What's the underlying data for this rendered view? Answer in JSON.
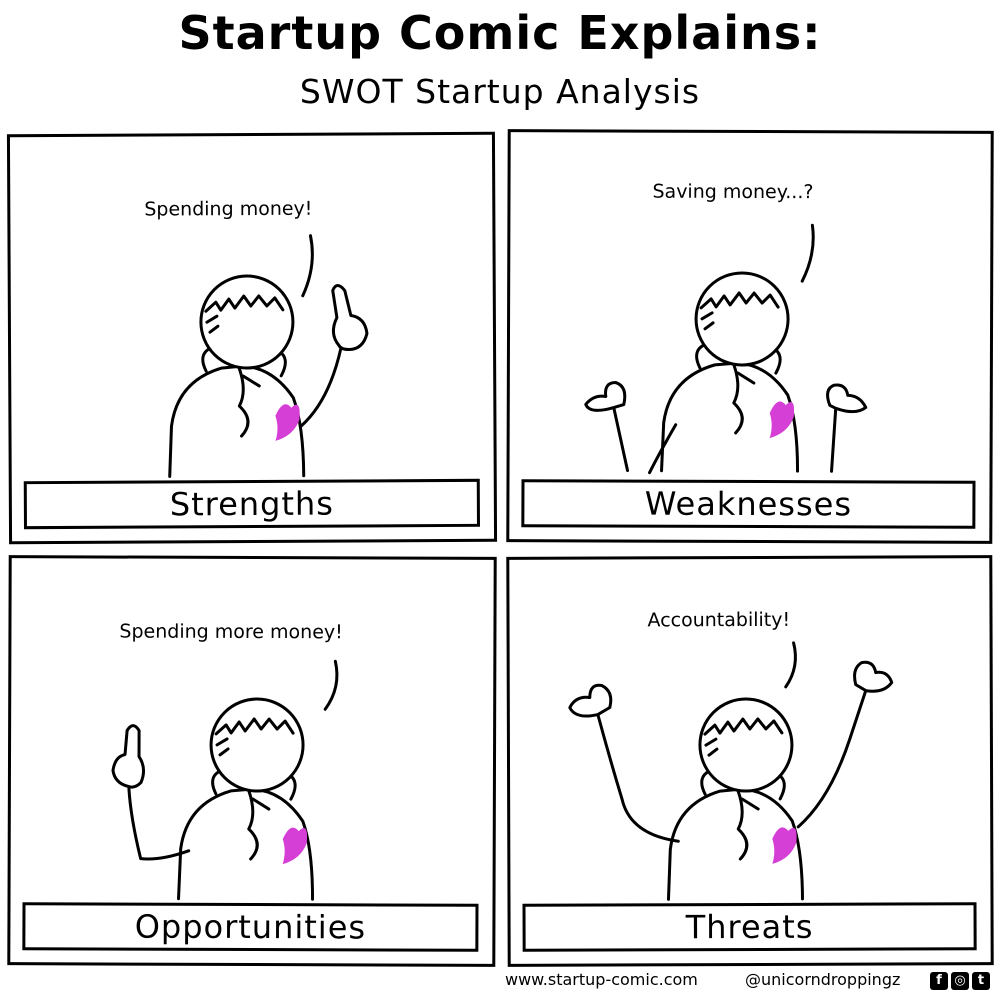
{
  "title": "Startup Comic Explains:",
  "subtitle": "SWOT Startup Analysis",
  "panels": [
    {
      "speech": "Spending money!",
      "label": "Strengths"
    },
    {
      "speech": "Saving money...?",
      "label": "Weaknesses"
    },
    {
      "speech": "Spending more money!",
      "label": "Opportunities"
    },
    {
      "speech": "Accountability!",
      "label": "Threats"
    }
  ],
  "footer": {
    "site": "www.startup-comic.com",
    "handle": "@unicorndroppingz",
    "social_icons": [
      "facebook-icon",
      "instagram-icon",
      "twitter-icon"
    ]
  },
  "colors": {
    "unicorn": "#d63fd6",
    "ink": "#000000"
  }
}
